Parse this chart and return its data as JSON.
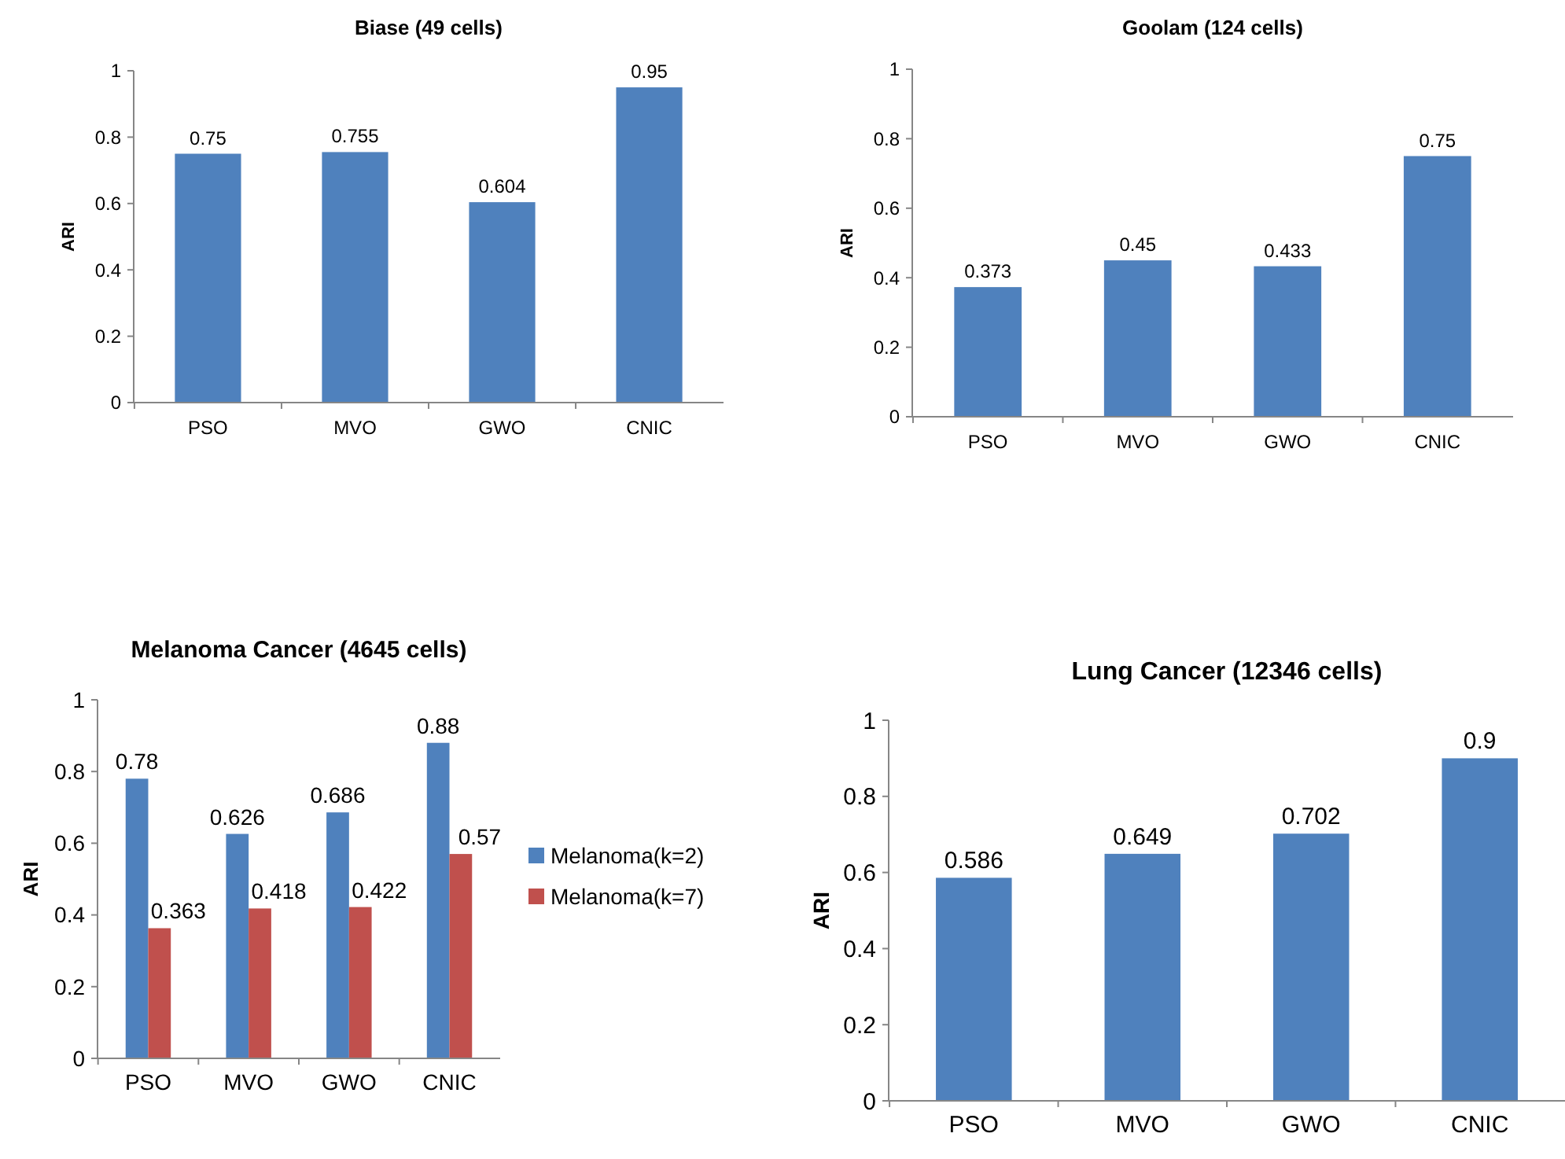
{
  "chart_data": [
    {
      "type": "bar",
      "title": "Biase (49 cells)",
      "ylabel": "ARI",
      "categories": [
        "PSO",
        "MVO",
        "GWO",
        "CNIC"
      ],
      "series": [
        {
          "color": "#4f81bd",
          "values": [
            0.75,
            0.755,
            0.604,
            0.95
          ]
        }
      ],
      "ylim": [
        0,
        1
      ],
      "yticks": [
        0,
        0.2,
        0.4,
        0.6,
        0.8,
        1
      ],
      "data_labels": true,
      "grid": false,
      "legend": false
    },
    {
      "type": "bar",
      "title": "Goolam (124 cells)",
      "ylabel": "ARI",
      "categories": [
        "PSO",
        "MVO",
        "GWO",
        "CNIC"
      ],
      "series": [
        {
          "color": "#4f81bd",
          "values": [
            0.373,
            0.45,
            0.433,
            0.75
          ]
        }
      ],
      "ylim": [
        0,
        1
      ],
      "yticks": [
        0,
        0.2,
        0.4,
        0.6,
        0.8,
        1
      ],
      "data_labels": true,
      "grid": false,
      "legend": false
    },
    {
      "type": "bar",
      "title": "Melanoma Cancer (4645 cells)",
      "ylabel": "ARI",
      "categories": [
        "PSO",
        "MVO",
        "GWO",
        "CNIC"
      ],
      "series": [
        {
          "name": "Melanoma(k=2)",
          "color": "#4f81bd",
          "values": [
            0.78,
            0.626,
            0.686,
            0.88
          ]
        },
        {
          "name": "Melanoma(k=7)",
          "color": "#c0504d",
          "values": [
            0.363,
            0.418,
            0.422,
            0.57
          ]
        }
      ],
      "ylim": [
        0,
        1
      ],
      "yticks": [
        0,
        0.2,
        0.4,
        0.6,
        0.8,
        1
      ],
      "data_labels": true,
      "grid": false,
      "legend": "right"
    },
    {
      "type": "bar",
      "title": "Lung Cancer (12346 cells)",
      "ylabel": "ARI",
      "categories": [
        "PSO",
        "MVO",
        "GWO",
        "CNIC"
      ],
      "series": [
        {
          "color": "#4f81bd",
          "values": [
            0.586,
            0.649,
            0.702,
            0.9
          ]
        }
      ],
      "ylim": [
        0,
        1
      ],
      "yticks": [
        0,
        0.2,
        0.4,
        0.6,
        0.8,
        1
      ],
      "data_labels": true,
      "grid": false,
      "legend": false
    }
  ]
}
